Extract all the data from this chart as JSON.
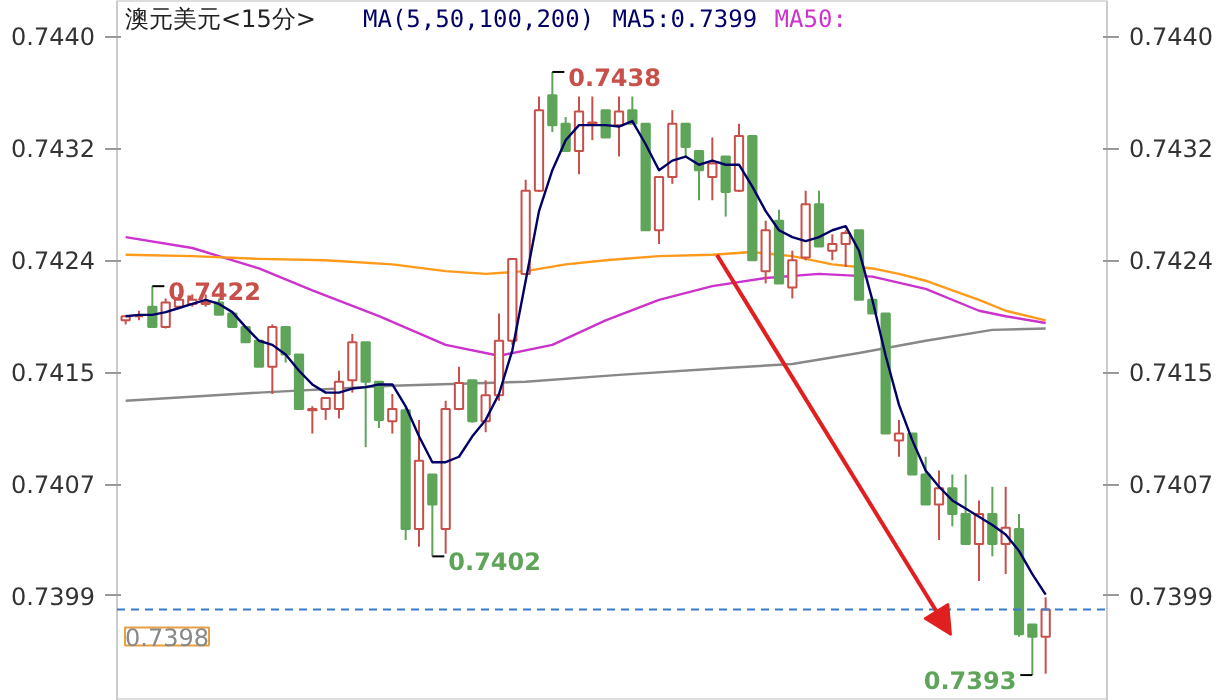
{
  "chart_data": {
    "type": "candlestick",
    "title": "澳元美元<15分>",
    "subtitle": "MA(5,50,100,200)",
    "categories": [
      null,
      null,
      null,
      null,
      null,
      null,
      null,
      null,
      null,
      null,
      null,
      null,
      null,
      null,
      null,
      null,
      null,
      null,
      null,
      null,
      null,
      null,
      null,
      null,
      null,
      null,
      null,
      null,
      null,
      null,
      null,
      null,
      null,
      null,
      null,
      null,
      null,
      null,
      null,
      null,
      null,
      null,
      null,
      null,
      null,
      null,
      null,
      null,
      null,
      null,
      null,
      null,
      null,
      null,
      null,
      null,
      null,
      null,
      null,
      null,
      null,
      null,
      null,
      null,
      null,
      null,
      null,
      null,
      null,
      null
    ],
    "ohlc": [
      [
        0.74192,
        0.74196,
        0.74189,
        0.74195
      ],
      [
        0.74195,
        0.74199,
        0.74192,
        0.74195
      ],
      [
        0.74202,
        0.74217,
        0.74187,
        0.74187
      ],
      [
        0.74187,
        0.74208,
        0.74186,
        0.74205
      ],
      [
        0.74202,
        0.74211,
        0.74201,
        0.74207
      ],
      [
        0.74204,
        0.74211,
        0.74202,
        0.74207
      ],
      [
        0.74204,
        0.74211,
        0.74202,
        0.74205
      ],
      [
        0.74205,
        0.74208,
        0.74196,
        0.74196
      ],
      [
        0.74197,
        0.74198,
        0.74187,
        0.74187
      ],
      [
        0.74187,
        0.74187,
        0.74176,
        0.74176
      ],
      [
        0.74177,
        0.74177,
        0.74158,
        0.74158
      ],
      [
        0.74158,
        0.74189,
        0.74138,
        0.74187
      ],
      [
        0.74187,
        0.74187,
        0.74161,
        0.74167
      ],
      [
        0.74167,
        0.74167,
        0.74127,
        0.74127
      ],
      [
        0.74126,
        0.74129,
        0.74109,
        0.74127
      ],
      [
        0.74127,
        0.74135,
        0.74119,
        0.74135
      ],
      [
        0.74127,
        0.74155,
        0.7412,
        0.74147
      ],
      [
        0.74148,
        0.74182,
        0.74139,
        0.74176
      ],
      [
        0.74176,
        0.74176,
        0.74099,
        0.74147
      ],
      [
        0.74147,
        0.74147,
        0.74113,
        0.74119
      ],
      [
        0.74118,
        0.74138,
        0.74109,
        0.74127
      ],
      [
        0.74126,
        0.74129,
        0.74031,
        0.74039
      ],
      [
        0.74039,
        0.74119,
        0.74026,
        0.74089
      ],
      [
        0.74079,
        0.74079,
        0.74019,
        0.74057
      ],
      [
        0.74039,
        0.74133,
        0.74021,
        0.74127
      ],
      [
        0.74127,
        0.74158,
        0.74126,
        0.74146
      ],
      [
        0.74148,
        0.74148,
        0.74117,
        0.74118
      ],
      [
        0.74118,
        0.74148,
        0.7411,
        0.74137
      ],
      [
        0.74137,
        0.74197,
        0.74133,
        0.74177
      ],
      [
        0.74177,
        0.74237,
        0.74174,
        0.74237
      ],
      [
        0.74226,
        0.74295,
        0.74225,
        0.74287
      ],
      [
        0.74287,
        0.74356,
        0.74286,
        0.74346
      ],
      [
        0.74357,
        0.74374,
        0.7433,
        0.74335
      ],
      [
        0.74336,
        0.74341,
        0.74316,
        0.74316
      ],
      [
        0.74316,
        0.74356,
        0.74299,
        0.74345
      ],
      [
        0.74336,
        0.74356,
        0.74324,
        0.74337
      ],
      [
        0.74346,
        0.74346,
        0.74326,
        0.74326
      ],
      [
        0.74335,
        0.74356,
        0.74312,
        0.74345
      ],
      [
        0.74346,
        0.74356,
        0.74336,
        0.74336
      ],
      [
        0.74336,
        0.74336,
        0.74258,
        0.74258
      ],
      [
        0.74258,
        0.74297,
        0.74248,
        0.74297
      ],
      [
        0.74297,
        0.74346,
        0.74292,
        0.74336
      ],
      [
        0.74336,
        0.74336,
        0.74312,
        0.74319
      ],
      [
        0.74316,
        0.74316,
        0.7428,
        0.74302
      ],
      [
        0.74297,
        0.74326,
        0.7428,
        0.74307
      ],
      [
        0.74312,
        0.74312,
        0.74268,
        0.74286
      ],
      [
        0.74287,
        0.74336,
        0.74286,
        0.74327
      ],
      [
        0.74327,
        0.74327,
        0.74236,
        0.74236
      ],
      [
        0.74228,
        0.74265,
        0.74219,
        0.74258
      ],
      [
        0.74265,
        0.74273,
        0.74219,
        0.74219
      ],
      [
        0.74216,
        0.74243,
        0.74208,
        0.74236
      ],
      [
        0.74238,
        0.74287,
        0.74236,
        0.74277
      ],
      [
        0.74277,
        0.74287,
        0.74246,
        0.74246
      ],
      [
        0.74243,
        0.74255,
        0.74236,
        0.74248
      ],
      [
        0.74248,
        0.74258,
        0.74231,
        0.74256
      ],
      [
        0.74258,
        0.74258,
        0.74207,
        0.74207
      ],
      [
        0.74207,
        0.74207,
        0.74197,
        0.74197
      ],
      [
        0.74197,
        0.74197,
        0.74109,
        0.74109
      ],
      [
        0.74104,
        0.74119,
        0.74092,
        0.74109
      ],
      [
        0.74109,
        0.74109,
        0.74079,
        0.74079
      ],
      [
        0.74079,
        0.74092,
        0.74057,
        0.74057
      ],
      [
        0.74057,
        0.74082,
        0.74031,
        0.74069
      ],
      [
        0.74069,
        0.74079,
        0.74041,
        0.7405
      ],
      [
        0.7405,
        0.74079,
        0.74028,
        0.74028
      ],
      [
        0.74028,
        0.7406,
        0.74001,
        0.7405
      ],
      [
        0.7405,
        0.7407,
        0.74019,
        0.74028
      ],
      [
        0.74028,
        0.7407,
        0.74006,
        0.7404
      ],
      [
        0.74039,
        0.7405,
        0.7396,
        0.73962
      ],
      [
        0.73969,
        0.73969,
        0.73932,
        0.7396
      ],
      [
        0.7396,
        0.73989,
        0.73933,
        0.7398
      ]
    ],
    "colors": [
      "#c8504a",
      "#c8504a",
      "#5ea55a",
      "#c8504a",
      "#c8504a",
      "#c8504a",
      "#c8504a",
      "#5ea55a",
      "#5ea55a",
      "#5ea55a",
      "#5ea55a",
      "#c8504a",
      "#5ea55a",
      "#5ea55a",
      "#c8504a",
      "#c8504a",
      "#c8504a",
      "#c8504a",
      "#5ea55a",
      "#5ea55a",
      "#c8504a",
      "#5ea55a",
      "#c8504a",
      "#5ea55a",
      "#c8504a",
      "#c8504a",
      "#5ea55a",
      "#c8504a",
      "#c8504a",
      "#c8504a",
      "#c8504a",
      "#c8504a",
      "#5ea55a",
      "#5ea55a",
      "#c8504a",
      "#c8504a",
      "#5ea55a",
      "#c8504a",
      "#5ea55a",
      "#5ea55a",
      "#c8504a",
      "#c8504a",
      "#5ea55a",
      "#5ea55a",
      "#c8504a",
      "#5ea55a",
      "#c8504a",
      "#5ea55a",
      "#c8504a",
      "#5ea55a",
      "#c8504a",
      "#c8504a",
      "#5ea55a",
      "#c8504a",
      "#c8504a",
      "#5ea55a",
      "#5ea55a",
      "#5ea55a",
      "#c8504a",
      "#5ea55a",
      "#5ea55a",
      "#c8504a",
      "#5ea55a",
      "#5ea55a",
      "#c8504a",
      "#5ea55a",
      "#c8504a",
      "#5ea55a",
      "#5ea55a",
      "#c8504a"
    ],
    "value_labels": [
      null,
      null,
      "0.7422",
      null,
      null,
      null,
      null,
      null,
      null,
      null,
      null,
      null,
      null,
      null,
      null,
      null,
      null,
      null,
      null,
      null,
      null,
      null,
      null,
      "0.7402",
      null,
      null,
      null,
      null,
      null,
      null,
      null,
      null,
      "0.7438",
      null,
      null,
      null,
      null,
      null,
      null,
      null,
      null,
      null,
      null,
      null,
      null,
      null,
      null,
      null,
      null,
      null,
      null,
      null,
      null,
      null,
      null,
      null,
      null,
      null,
      null,
      null,
      null,
      null,
      null,
      null,
      null,
      null,
      null,
      null,
      "0.7393",
      null
    ],
    "series": [
      {
        "type": "line",
        "name": "MA5:0.7399",
        "color": "#000066",
        "values": [
          0.74195,
          0.74196,
          0.74196,
          0.74198,
          0.74201,
          0.74204,
          0.74207,
          0.74204,
          0.74198,
          0.74187,
          0.74177,
          0.74174,
          0.74167,
          0.74155,
          0.74145,
          0.74139,
          0.74139,
          0.74142,
          0.74143,
          0.74145,
          0.74145,
          0.74129,
          0.74107,
          0.74088,
          0.74088,
          0.74092,
          0.74107,
          0.74119,
          0.74138,
          0.7417,
          0.74221,
          0.74272,
          0.74302,
          0.74324,
          0.74335,
          0.74335,
          0.74335,
          0.74334,
          0.74338,
          0.74321,
          0.74302,
          0.74309,
          0.74312,
          0.74306,
          0.74309,
          0.74306,
          0.74306,
          0.7429,
          0.74272,
          0.74258,
          0.74253,
          0.7425,
          0.74253,
          0.74258,
          0.74261,
          0.74243,
          0.74207,
          0.74166,
          0.7413,
          0.74104,
          0.74082,
          0.7407,
          0.7406,
          0.74054,
          0.74048,
          0.74042,
          0.74035,
          0.74023,
          0.74006,
          0.73991
        ]
      },
      {
        "type": "line",
        "name": "MA50:",
        "color": "#cc33cc",
        "values": [
          0.74253,
          null,
          null,
          null,
          null,
          0.74245,
          null,
          null,
          null,
          null,
          0.7423,
          null,
          null,
          null,
          0.74214,
          null,
          null,
          null,
          null,
          0.74195,
          null,
          null,
          null,
          null,
          0.74174,
          null,
          null,
          null,
          0.74166,
          null,
          null,
          null,
          0.74174,
          null,
          null,
          null,
          0.74192,
          null,
          null,
          null,
          0.74207,
          null,
          null,
          null,
          0.74217,
          null,
          null,
          null,
          0.74223,
          null,
          null,
          null,
          0.74226,
          null,
          null,
          null,
          0.74224,
          null,
          null,
          null,
          0.74215,
          null,
          null,
          null,
          0.74199,
          null,
          0.74195,
          null,
          null,
          0.7419
        ]
      },
      {
        "type": "line",
        "color": "#ff9a1a",
        "values": [
          0.7424,
          null,
          null,
          null,
          null,
          0.74239,
          null,
          null,
          null,
          null,
          0.74237,
          null,
          null,
          null,
          null,
          0.74236,
          null,
          null,
          null,
          null,
          0.74233,
          null,
          null,
          null,
          0.74228,
          null,
          null,
          0.74226,
          null,
          null,
          0.74228,
          null,
          null,
          0.74233,
          null,
          null,
          0.74236,
          null,
          null,
          null,
          0.74239,
          null,
          null,
          null,
          0.7424,
          null,
          null,
          0.74242,
          null,
          null,
          0.74239,
          null,
          null,
          0.74233,
          null,
          null,
          0.7423,
          null,
          0.74226,
          null,
          0.74221,
          null,
          0.74214,
          null,
          0.74207,
          null,
          0.74199,
          null,
          null,
          0.74192
        ]
      },
      {
        "type": "line",
        "color": "#888888",
        "values": [
          0.74133,
          null,
          null,
          null,
          null,
          null,
          null,
          null,
          null,
          null,
          0.74139,
          null,
          null,
          null,
          null,
          null,
          null,
          null,
          null,
          null,
          0.74144,
          null,
          null,
          null,
          null,
          null,
          null,
          null,
          null,
          null,
          0.74147,
          null,
          null,
          null,
          null,
          null,
          null,
          0.74152,
          null,
          null,
          null,
          null,
          null,
          null,
          null,
          0.74157,
          null,
          null,
          null,
          null,
          0.7416,
          null,
          null,
          null,
          null,
          0.74168,
          null,
          null,
          null,
          null,
          0.74177,
          null,
          null,
          null,
          null,
          0.74185,
          null,
          null,
          null,
          0.74186
        ]
      }
    ],
    "ylim": [
      0.73913,
      0.74426
    ],
    "yticks": [
      {
        "value": 0.7399,
        "label": "0.7399"
      },
      {
        "value": 0.74072,
        "label": "0.7407"
      },
      {
        "value": 0.74154,
        "label": "0.7415"
      },
      {
        "value": 0.74236,
        "label": "0.7424"
      },
      {
        "value": 0.74318,
        "label": "0.7432"
      },
      {
        "value": 0.744,
        "label": "0.7440"
      }
    ],
    "y2lim": [
      0.73913,
      0.74426
    ],
    "y2ticks": [
      {
        "value": 0.7399,
        "label": "0.7399"
      },
      {
        "value": 0.74072,
        "label": "0.7407"
      },
      {
        "value": 0.74154,
        "label": "0.7415"
      },
      {
        "value": 0.74236,
        "label": "0.7424"
      },
      {
        "value": 0.74318,
        "label": "0.7432"
      },
      {
        "value": 0.744,
        "label": "0.7440"
      }
    ],
    "ref_lines": [
      {
        "axis": "y",
        "value": 0.7398,
        "label": "0.7398",
        "color": "#3a7cc8",
        "line_style": "dashed"
      }
    ],
    "legend": "top",
    "tick_labels": "y"
  }
}
